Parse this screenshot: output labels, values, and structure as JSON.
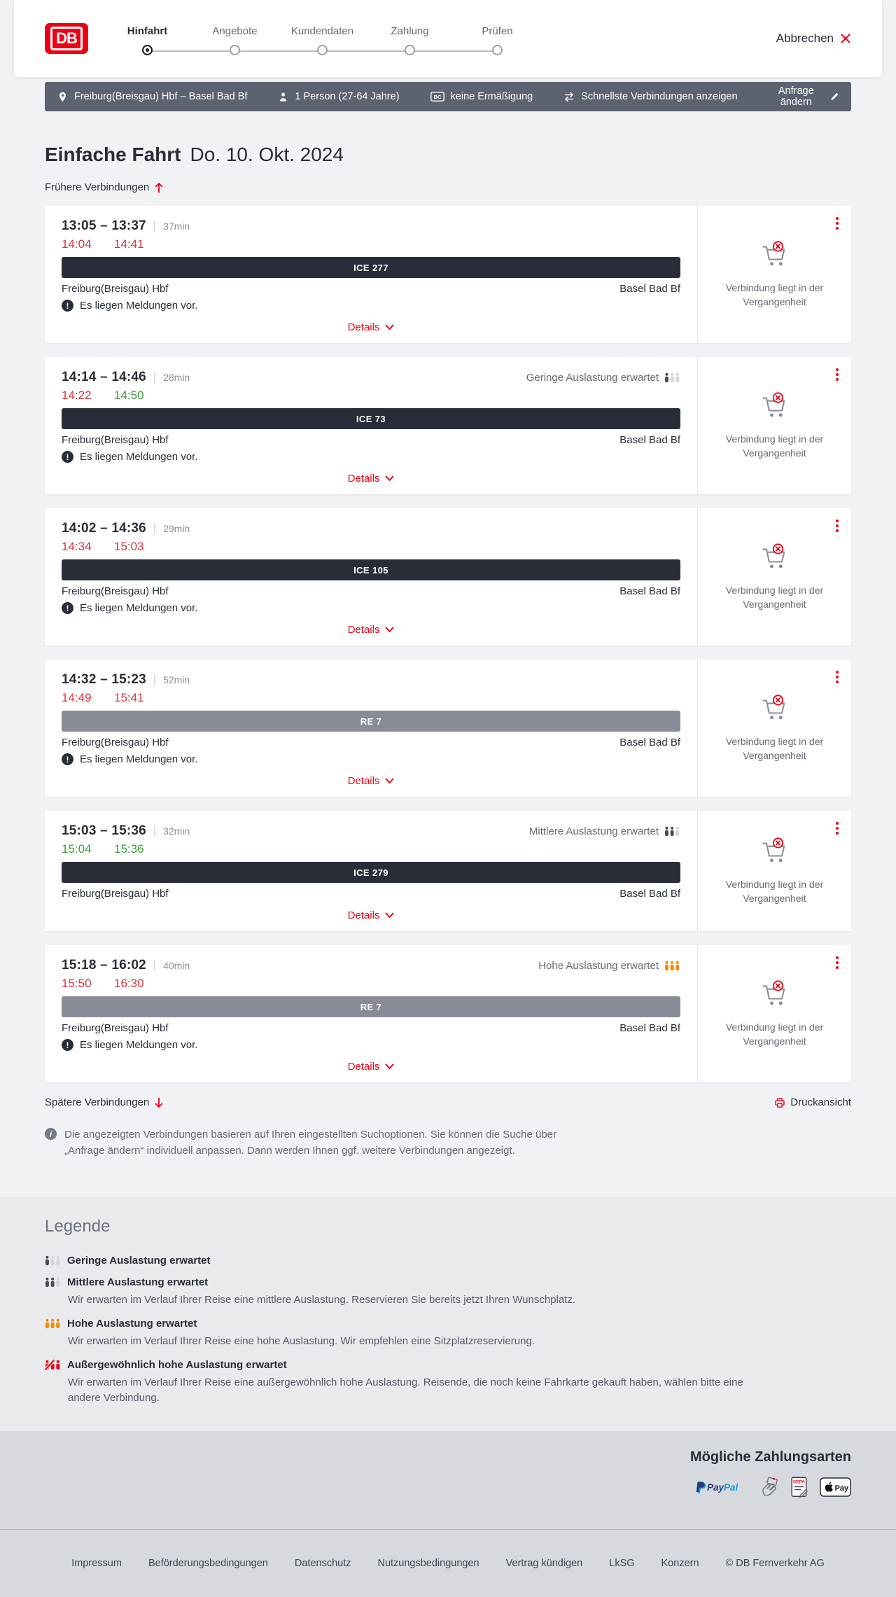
{
  "header": {
    "steps": [
      "Hinfahrt",
      "Angebote",
      "Kundendaten",
      "Zahlung",
      "Prüfen"
    ],
    "active_step": 0,
    "cancel_label": "Abbrechen"
  },
  "summary_bar": {
    "route": "Freiburg(Breisgau) Hbf – Basel Bad Bf",
    "passengers": "1 Person (27-64 Jahre)",
    "bahncard_badge": "BC",
    "discount": "keine Ermäßigung",
    "sort_option": "Schnellste Verbindungen anzeigen",
    "edit_label": "Anfrage ändern"
  },
  "page": {
    "title": "Einfache Fahrt",
    "date": "Do. 10. Okt. 2024",
    "earlier_label": "Frühere Verbindungen",
    "later_label": "Spätere Verbindungen",
    "print_label": "Druckansicht",
    "info_note": "Die angezeigten Verbindungen basieren auf Ihren eingestellten Suchoptionen. Sie können die Suche über „Anfrage ändern“ individuell anpassen. Dann werden Ihnen ggf. weitere Verbindungen angezeigt."
  },
  "labels": {
    "details": "Details",
    "message_note": "Es liegen Meldungen vor.",
    "past_note": "Verbindung liegt in der Vergangenheit"
  },
  "journeys": [
    {
      "time_range": "13:05 – 13:37",
      "duration": "37min",
      "rt_dep": "14:04",
      "rt_dep_state": "late",
      "rt_arr": "14:41",
      "rt_arr_state": "late",
      "train": "ICE 277",
      "train_class": "ice",
      "from": "Freiburg(Breisgau) Hbf",
      "to": "Basel Bad Bf",
      "message": true,
      "occupancy_label": null,
      "occupancy_level": null
    },
    {
      "time_range": "14:14 – 14:46",
      "duration": "28min",
      "rt_dep": "14:22",
      "rt_dep_state": "late",
      "rt_arr": "14:50",
      "rt_arr_state": "ontime",
      "train": "ICE 73",
      "train_class": "ice",
      "from": "Freiburg(Breisgau) Hbf",
      "to": "Basel Bad Bf",
      "message": true,
      "occupancy_label": "Geringe Auslastung erwartet",
      "occupancy_level": "low"
    },
    {
      "time_range": "14:02 – 14:36",
      "duration": "29min",
      "rt_dep": "14:34",
      "rt_dep_state": "late",
      "rt_arr": "15:03",
      "rt_arr_state": "late",
      "train": "ICE 105",
      "train_class": "ice",
      "from": "Freiburg(Breisgau) Hbf",
      "to": "Basel Bad Bf",
      "message": true,
      "occupancy_label": null,
      "occupancy_level": null
    },
    {
      "time_range": "14:32 – 15:23",
      "duration": "52min",
      "rt_dep": "14:49",
      "rt_dep_state": "late",
      "rt_arr": "15:41",
      "rt_arr_state": "late",
      "train": "RE 7",
      "train_class": "re",
      "from": "Freiburg(Breisgau) Hbf",
      "to": "Basel Bad Bf",
      "message": true,
      "occupancy_label": null,
      "occupancy_level": null
    },
    {
      "time_range": "15:03 – 15:36",
      "duration": "32min",
      "rt_dep": "15:04",
      "rt_dep_state": "ontime",
      "rt_arr": "15:36",
      "rt_arr_state": "ontime",
      "train": "ICE 279",
      "train_class": "ice",
      "from": "Freiburg(Breisgau) Hbf",
      "to": "Basel Bad Bf",
      "message": false,
      "occupancy_label": "Mittlere Auslastung erwartet",
      "occupancy_level": "mid"
    },
    {
      "time_range": "15:18 – 16:02",
      "duration": "40min",
      "rt_dep": "15:50",
      "rt_dep_state": "late",
      "rt_arr": "16:30",
      "rt_arr_state": "late",
      "train": "RE 7",
      "train_class": "re",
      "from": "Freiburg(Breisgau) Hbf",
      "to": "Basel Bad Bf",
      "message": true,
      "occupancy_label": "Hohe Auslastung erwartet",
      "occupancy_level": "high"
    }
  ],
  "legend": {
    "title": "Legende",
    "items": [
      {
        "level": "low",
        "label": "Geringe Auslastung erwartet",
        "desc": ""
      },
      {
        "level": "mid",
        "label": "Mittlere Auslastung erwartet",
        "desc": "Wir erwarten im Verlauf Ihrer Reise eine mittlere Auslastung. Reservieren Sie bereits jetzt Ihren Wunschplatz."
      },
      {
        "level": "high",
        "label": "Hohe Auslastung erwartet",
        "desc": "Wir erwarten im Verlauf Ihrer Reise eine hohe Auslastung. Wir empfehlen eine Sitzplatzreservierung."
      },
      {
        "level": "extreme",
        "label": "Außergewöhnlich hohe Auslastung erwartet",
        "desc": "Wir erwarten im Verlauf Ihrer Reise eine außergewöhnlich hohe Auslastung. Reisende, die noch keine Fahrkarte gekauft haben, wählen bitte eine andere Verbindung."
      }
    ]
  },
  "payments": {
    "title": "Mögliche Zahlungsarten",
    "paypal_text": "PayPal",
    "sepa_text": "SEPA",
    "applepay_text": "Pay",
    "methods": [
      "PayPal",
      "Kreditkarte",
      "SEPA-Lastschrift",
      "Apple Pay"
    ]
  },
  "footer": {
    "links": [
      "Impressum",
      "Beförderungsbedingungen",
      "Datenschutz",
      "Nutzungsbedingungen",
      "Vertrag kündigen",
      "LkSG",
      "Konzern"
    ],
    "copyright": "© DB Fernverkehr AG"
  }
}
